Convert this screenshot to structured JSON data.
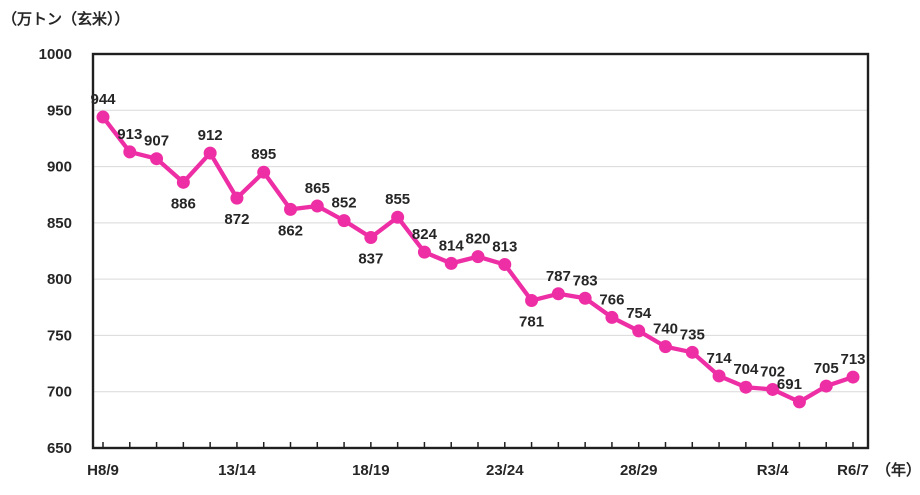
{
  "chart_data": {
    "type": "line",
    "title": "（万トン（玄米））",
    "x_unit_label": "（年）",
    "ylim": [
      650,
      1000
    ],
    "yticks": [
      1000,
      950,
      900,
      850,
      800,
      750,
      700,
      650
    ],
    "grid": true,
    "legend": false,
    "colors": {
      "line": "#EE2EA4",
      "marker": "#EE2EA4",
      "grid": "#D9D9D9",
      "axis": "#1F1F1F",
      "text": "#262626"
    },
    "x_tick_labels": [
      {
        "index": 0,
        "label": "H8/9"
      },
      {
        "index": 5,
        "label": "13/14"
      },
      {
        "index": 10,
        "label": "18/19"
      },
      {
        "index": 15,
        "label": "23/24"
      },
      {
        "index": 20,
        "label": "28/29"
      },
      {
        "index": 25,
        "label": "R3/4"
      },
      {
        "index": 28,
        "label": "R6/7"
      }
    ],
    "series": [
      {
        "color": "#EE2EA4",
        "points": [
          {
            "value": 944,
            "label_pos": "above"
          },
          {
            "value": 913,
            "label_pos": "above"
          },
          {
            "value": 907,
            "label_pos": "above"
          },
          {
            "value": 886,
            "label_pos": "below"
          },
          {
            "value": 912,
            "label_pos": "above"
          },
          {
            "value": 872,
            "label_pos": "below"
          },
          {
            "value": 895,
            "label_pos": "above"
          },
          {
            "value": 862,
            "label_pos": "below"
          },
          {
            "value": 865,
            "label_pos": "above"
          },
          {
            "value": 852,
            "label_pos": "above"
          },
          {
            "value": 837,
            "label_pos": "below"
          },
          {
            "value": 855,
            "label_pos": "above"
          },
          {
            "value": 824,
            "label_pos": "above"
          },
          {
            "value": 814,
            "label_pos": "above"
          },
          {
            "value": 820,
            "label_pos": "above"
          },
          {
            "value": 813,
            "label_pos": "above"
          },
          {
            "value": 781,
            "label_pos": "below"
          },
          {
            "value": 787,
            "label_pos": "above"
          },
          {
            "value": 783,
            "label_pos": "above"
          },
          {
            "value": 766,
            "label_pos": "above"
          },
          {
            "value": 754,
            "label_pos": "above"
          },
          {
            "value": 740,
            "label_pos": "above"
          },
          {
            "value": 735,
            "label_pos": "above"
          },
          {
            "value": 714,
            "label_pos": "above"
          },
          {
            "value": 704,
            "label_pos": "above"
          },
          {
            "value": 702,
            "label_pos": "above"
          },
          {
            "value": 691,
            "label_pos": "above",
            "label_dx": -10
          },
          {
            "value": 705,
            "label_pos": "above"
          },
          {
            "value": 713,
            "label_pos": "above"
          }
        ]
      }
    ]
  }
}
